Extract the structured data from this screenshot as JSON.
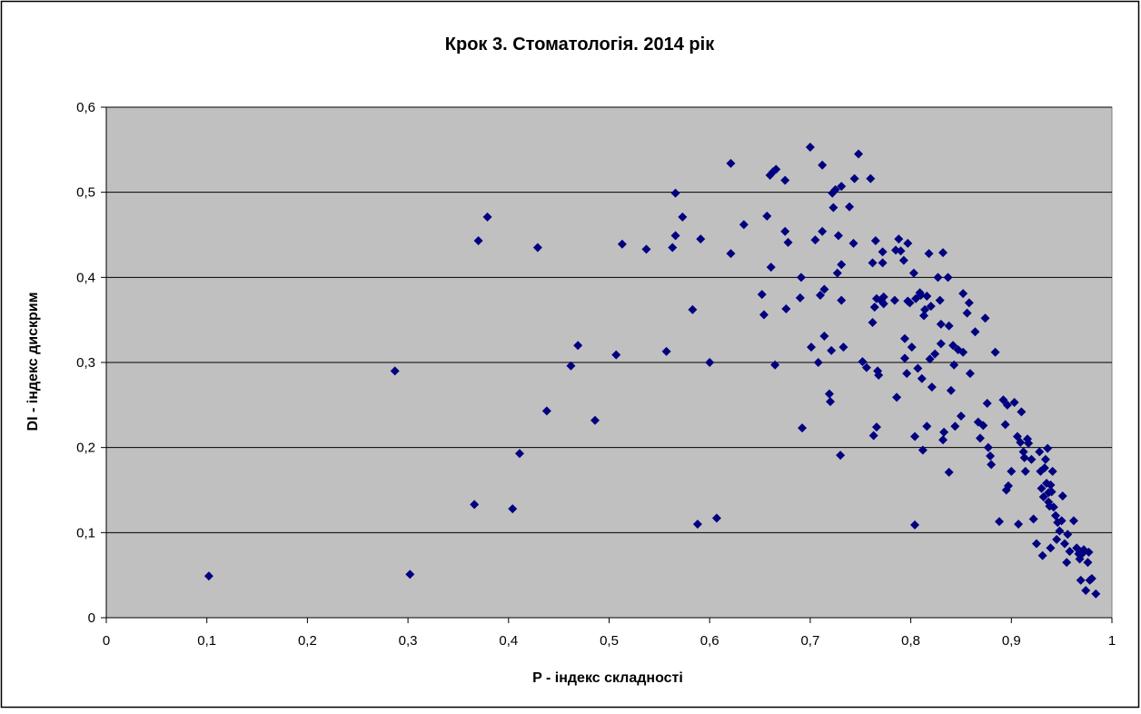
{
  "chart_data": {
    "type": "scatter",
    "title": "Крок 3. Стоматологія. 2014 рік",
    "xlabel": "P - індекс складності",
    "ylabel": "DI - індекс дискрим",
    "xlim": [
      0,
      1
    ],
    "ylim": [
      0,
      0.6
    ],
    "x_ticks": [
      "0",
      "0,1",
      "0,2",
      "0,3",
      "0,4",
      "0,5",
      "0,6",
      "0,7",
      "0,8",
      "0,9",
      "1"
    ],
    "y_ticks": [
      "0",
      "0,1",
      "0,2",
      "0,3",
      "0,4",
      "0,5",
      "0,6"
    ],
    "grid": "horizontal",
    "legend": "none",
    "colors": {
      "plot_bg": "#c0c0c0",
      "marker": "#000080",
      "grid": "#000000"
    },
    "marker": "diamond",
    "series": [
      {
        "points": [
          [
            0.102,
            0.049
          ],
          [
            0.287,
            0.29
          ],
          [
            0.302,
            0.051
          ],
          [
            0.366,
            0.133
          ],
          [
            0.37,
            0.443
          ],
          [
            0.379,
            0.471
          ],
          [
            0.404,
            0.128
          ],
          [
            0.411,
            0.193
          ],
          [
            0.429,
            0.435
          ],
          [
            0.438,
            0.243
          ],
          [
            0.462,
            0.296
          ],
          [
            0.469,
            0.32
          ],
          [
            0.486,
            0.232
          ],
          [
            0.507,
            0.309
          ],
          [
            0.513,
            0.439
          ],
          [
            0.537,
            0.433
          ],
          [
            0.557,
            0.313
          ],
          [
            0.563,
            0.435
          ],
          [
            0.566,
            0.449
          ],
          [
            0.566,
            0.499
          ],
          [
            0.573,
            0.471
          ],
          [
            0.583,
            0.362
          ],
          [
            0.588,
            0.11
          ],
          [
            0.591,
            0.445
          ],
          [
            0.6,
            0.3
          ],
          [
            0.607,
            0.117
          ],
          [
            0.621,
            0.428
          ],
          [
            0.621,
            0.534
          ],
          [
            0.634,
            0.462
          ],
          [
            0.652,
            0.38
          ],
          [
            0.654,
            0.356
          ],
          [
            0.657,
            0.472
          ],
          [
            0.66,
            0.52
          ],
          [
            0.661,
            0.412
          ],
          [
            0.663,
            0.524
          ],
          [
            0.665,
            0.297
          ],
          [
            0.666,
            0.527
          ],
          [
            0.675,
            0.514
          ],
          [
            0.675,
            0.454
          ],
          [
            0.676,
            0.363
          ],
          [
            0.678,
            0.441
          ],
          [
            0.69,
            0.376
          ],
          [
            0.691,
            0.4
          ],
          [
            0.692,
            0.223
          ],
          [
            0.7,
            0.553
          ],
          [
            0.701,
            0.318
          ],
          [
            0.705,
            0.444
          ],
          [
            0.708,
            0.3
          ],
          [
            0.71,
            0.379
          ],
          [
            0.712,
            0.532
          ],
          [
            0.712,
            0.454
          ],
          [
            0.714,
            0.331
          ],
          [
            0.714,
            0.386
          ],
          [
            0.719,
            0.263
          ],
          [
            0.72,
            0.254
          ],
          [
            0.721,
            0.314
          ],
          [
            0.722,
            0.499
          ],
          [
            0.723,
            0.482
          ],
          [
            0.725,
            0.503
          ],
          [
            0.727,
            0.405
          ],
          [
            0.728,
            0.449
          ],
          [
            0.73,
            0.191
          ],
          [
            0.731,
            0.373
          ],
          [
            0.731,
            0.415
          ],
          [
            0.731,
            0.507
          ],
          [
            0.733,
            0.318
          ],
          [
            0.739,
            0.483
          ],
          [
            0.743,
            0.44
          ],
          [
            0.744,
            0.516
          ],
          [
            0.748,
            0.545
          ],
          [
            0.752,
            0.301
          ],
          [
            0.756,
            0.294
          ],
          [
            0.76,
            0.516
          ],
          [
            0.762,
            0.347
          ],
          [
            0.762,
            0.417
          ],
          [
            0.763,
            0.214
          ],
          [
            0.764,
            0.365
          ],
          [
            0.765,
            0.443
          ],
          [
            0.766,
            0.224
          ],
          [
            0.766,
            0.375
          ],
          [
            0.767,
            0.29
          ],
          [
            0.768,
            0.285
          ],
          [
            0.771,
            0.372
          ],
          [
            0.772,
            0.43
          ],
          [
            0.772,
            0.417
          ],
          [
            0.773,
            0.369
          ],
          [
            0.773,
            0.377
          ],
          [
            0.784,
            0.373
          ],
          [
            0.785,
            0.432
          ],
          [
            0.786,
            0.259
          ],
          [
            0.788,
            0.445
          ],
          [
            0.79,
            0.431
          ],
          [
            0.793,
            0.42
          ],
          [
            0.794,
            0.328
          ],
          [
            0.794,
            0.305
          ],
          [
            0.796,
            0.287
          ],
          [
            0.797,
            0.44
          ],
          [
            0.797,
            0.372
          ],
          [
            0.799,
            0.37
          ],
          [
            0.801,
            0.318
          ],
          [
            0.803,
            0.405
          ],
          [
            0.804,
            0.213
          ],
          [
            0.804,
            0.109
          ],
          [
            0.805,
            0.375
          ],
          [
            0.807,
            0.293
          ],
          [
            0.809,
            0.382
          ],
          [
            0.81,
            0.379
          ],
          [
            0.811,
            0.281
          ],
          [
            0.812,
            0.197
          ],
          [
            0.813,
            0.355
          ],
          [
            0.814,
            0.362
          ],
          [
            0.816,
            0.225
          ],
          [
            0.816,
            0.378
          ],
          [
            0.818,
            0.428
          ],
          [
            0.819,
            0.304
          ],
          [
            0.82,
            0.366
          ],
          [
            0.821,
            0.271
          ],
          [
            0.824,
            0.31
          ],
          [
            0.827,
            0.4
          ],
          [
            0.829,
            0.373
          ],
          [
            0.83,
            0.322
          ],
          [
            0.83,
            0.345
          ],
          [
            0.832,
            0.429
          ],
          [
            0.832,
            0.209
          ],
          [
            0.833,
            0.218
          ],
          [
            0.837,
            0.4
          ],
          [
            0.838,
            0.171
          ],
          [
            0.838,
            0.343
          ],
          [
            0.84,
            0.267
          ],
          [
            0.842,
            0.32
          ],
          [
            0.843,
            0.297
          ],
          [
            0.844,
            0.225
          ],
          [
            0.847,
            0.315
          ],
          [
            0.85,
            0.237
          ],
          [
            0.852,
            0.312
          ],
          [
            0.852,
            0.381
          ],
          [
            0.856,
            0.358
          ],
          [
            0.858,
            0.37
          ],
          [
            0.859,
            0.287
          ],
          [
            0.864,
            0.336
          ],
          [
            0.867,
            0.23
          ],
          [
            0.869,
            0.211
          ],
          [
            0.872,
            0.226
          ],
          [
            0.874,
            0.352
          ],
          [
            0.876,
            0.252
          ],
          [
            0.877,
            0.2
          ],
          [
            0.879,
            0.19
          ],
          [
            0.88,
            0.18
          ],
          [
            0.884,
            0.312
          ],
          [
            0.888,
            0.113
          ],
          [
            0.892,
            0.256
          ],
          [
            0.894,
            0.227
          ],
          [
            0.895,
            0.15
          ],
          [
            0.896,
            0.25
          ],
          [
            0.897,
            0.155
          ],
          [
            0.9,
            0.172
          ],
          [
            0.903,
            0.253
          ],
          [
            0.906,
            0.213
          ],
          [
            0.907,
            0.11
          ],
          [
            0.909,
            0.206
          ],
          [
            0.91,
            0.242
          ],
          [
            0.912,
            0.195
          ],
          [
            0.913,
            0.188
          ],
          [
            0.914,
            0.172
          ],
          [
            0.916,
            0.21
          ],
          [
            0.917,
            0.205
          ],
          [
            0.92,
            0.186
          ],
          [
            0.922,
            0.116
          ],
          [
            0.925,
            0.087
          ],
          [
            0.928,
            0.195
          ],
          [
            0.929,
            0.172
          ],
          [
            0.93,
            0.152
          ],
          [
            0.931,
            0.073
          ],
          [
            0.932,
            0.142
          ],
          [
            0.933,
            0.176
          ],
          [
            0.934,
            0.186
          ],
          [
            0.935,
            0.158
          ],
          [
            0.936,
            0.199
          ],
          [
            0.937,
            0.136
          ],
          [
            0.937,
            0.147
          ],
          [
            0.938,
            0.131
          ],
          [
            0.939,
            0.082
          ],
          [
            0.939,
            0.156
          ],
          [
            0.94,
            0.148
          ],
          [
            0.941,
            0.172
          ],
          [
            0.942,
            0.13
          ],
          [
            0.944,
            0.12
          ],
          [
            0.945,
            0.092
          ],
          [
            0.946,
            0.112
          ],
          [
            0.948,
            0.102
          ],
          [
            0.95,
            0.114
          ],
          [
            0.951,
            0.143
          ],
          [
            0.953,
            0.087
          ],
          [
            0.955,
            0.065
          ],
          [
            0.956,
            0.098
          ],
          [
            0.958,
            0.078
          ],
          [
            0.962,
            0.114
          ],
          [
            0.965,
            0.082
          ],
          [
            0.967,
            0.075
          ],
          [
            0.968,
            0.069
          ],
          [
            0.969,
            0.044
          ],
          [
            0.971,
            0.076
          ],
          [
            0.972,
            0.08
          ],
          [
            0.974,
            0.032
          ],
          [
            0.976,
            0.065
          ],
          [
            0.977,
            0.077
          ],
          [
            0.978,
            0.044
          ],
          [
            0.98,
            0.046
          ],
          [
            0.984,
            0.028
          ]
        ]
      }
    ]
  }
}
